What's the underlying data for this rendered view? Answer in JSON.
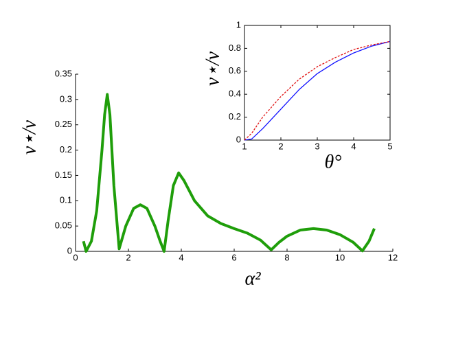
{
  "chart_data": [
    {
      "type": "line",
      "x_label": "α²",
      "y_label": "v⋆/v",
      "xlim": [
        0,
        12
      ],
      "xticks": [
        0,
        2,
        4,
        6,
        8,
        10,
        12
      ],
      "ylim": [
        0,
        0.35
      ],
      "yticks": [
        0,
        0.05,
        0.1,
        0.15,
        0.2,
        0.25,
        0.3,
        0.35
      ],
      "x": [
        0.3,
        0.4,
        0.6,
        0.8,
        1.0,
        1.1,
        1.2,
        1.3,
        1.45,
        1.65,
        1.9,
        2.2,
        2.45,
        2.7,
        3.0,
        3.2,
        3.35,
        3.5,
        3.7,
        3.9,
        4.1,
        4.5,
        5,
        5.5,
        6,
        6.5,
        7,
        7.4,
        7.7,
        8,
        8.5,
        9,
        9.5,
        10,
        10.5,
        10.85,
        11.1,
        11.3
      ],
      "frame": false,
      "series": [
        {
          "color": "#1f9e0a",
          "line_style": "solid",
          "line_width": 4,
          "values": [
            0.02,
            0,
            0.02,
            0.08,
            0.2,
            0.27,
            0.31,
            0.27,
            0.13,
            0.005,
            0.05,
            0.085,
            0.092,
            0.085,
            0.05,
            0.02,
            0,
            0.06,
            0.13,
            0.155,
            0.14,
            0.1,
            0.07,
            0.055,
            0.045,
            0.036,
            0.022,
            0.003,
            0.018,
            0.03,
            0.042,
            0.045,
            0.042,
            0.033,
            0.018,
            0.001,
            0.02,
            0.045
          ]
        }
      ]
    },
    {
      "type": "line",
      "x_label": "θ°",
      "y_label": "v⋆/v",
      "xlim": [
        1,
        5
      ],
      "xticks": [
        1,
        2,
        3,
        4,
        5
      ],
      "ylim": [
        0,
        1
      ],
      "yticks": [
        0,
        0.2,
        0.4,
        0.6,
        0.8,
        1
      ],
      "x": [
        1,
        1.2,
        1.5,
        2,
        2.5,
        3,
        3.5,
        4,
        4.5,
        5
      ],
      "frame": true,
      "series": [
        {
          "color": "#1010ff",
          "line_style": "solid",
          "line_width": 1.3,
          "values": [
            0,
            0.01,
            0.1,
            0.27,
            0.44,
            0.58,
            0.68,
            0.76,
            0.82,
            0.86
          ]
        },
        {
          "color": "#e01010",
          "line_style": "dashed",
          "line_width": 1.3,
          "values": [
            0,
            0.06,
            0.2,
            0.38,
            0.53,
            0.64,
            0.72,
            0.79,
            0.83,
            0.86
          ]
        }
      ]
    }
  ]
}
